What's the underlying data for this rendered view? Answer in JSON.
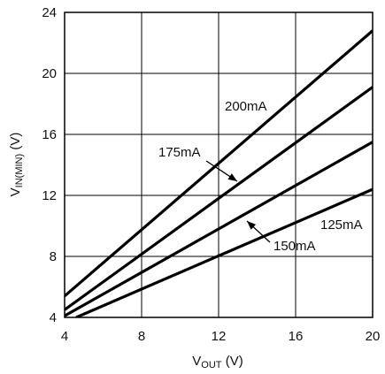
{
  "chart_data": {
    "type": "line",
    "title": "",
    "xlabel": {
      "main": "V",
      "sub": "OUT",
      "unit": " (V)"
    },
    "ylabel": {
      "main": "V",
      "sub": "IN(MIN)",
      "unit": " (V)"
    },
    "xlim": [
      4,
      20
    ],
    "ylim": [
      4,
      24
    ],
    "x_ticks": [
      4,
      8,
      12,
      16,
      20
    ],
    "y_ticks": [
      4,
      8,
      12,
      16,
      20,
      24
    ],
    "grid": true,
    "line_color": "#000000",
    "series": [
      {
        "name": "200mA",
        "x": [
          4,
          20
        ],
        "y": [
          5.4,
          22.8
        ]
      },
      {
        "name": "175mA",
        "x": [
          4,
          20
        ],
        "y": [
          4.5,
          19.1
        ]
      },
      {
        "name": "150mA",
        "x": [
          4,
          20
        ],
        "y": [
          4.1,
          15.5
        ]
      },
      {
        "name": "125mA",
        "x": [
          4.6,
          20
        ],
        "y": [
          4.0,
          12.4
        ]
      }
    ]
  }
}
